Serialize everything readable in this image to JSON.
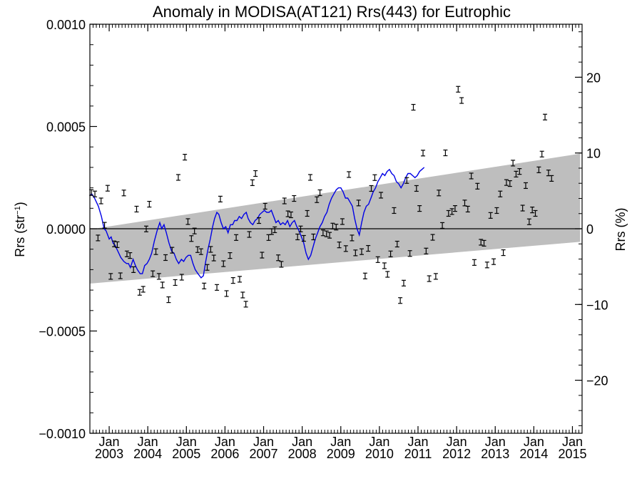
{
  "chart_data": {
    "type": "scatter",
    "title": "Anomaly in MODISA(AT121) Rrs(443) for Eutrophic",
    "ylabel_left": "Rrs (str",
    "ylabel_left_sup": "−1",
    "ylabel_left_tail": ")",
    "ylabel_right": "Rrs (%)",
    "x_range": [
      2002.5,
      2015.25
    ],
    "y_left_range": [
      -0.001,
      0.001
    ],
    "y_right_range": [
      -27,
      27
    ],
    "y_left_ticks": [
      {
        "v": 0.001,
        "label": "0.0010"
      },
      {
        "v": 0.0005,
        "label": "0.0005"
      },
      {
        "v": 0.0,
        "label": "0.0000"
      },
      {
        "v": -0.0005,
        "label": "−0.0005"
      },
      {
        "v": -0.001,
        "label": "−0.0010"
      }
    ],
    "y_right_ticks": [
      {
        "v": 20,
        "label": "20"
      },
      {
        "v": 10,
        "label": "10"
      },
      {
        "v": 0,
        "label": "0"
      },
      {
        "v": -10,
        "label": "−10"
      },
      {
        "v": -20,
        "label": "−20"
      }
    ],
    "x_ticks": [
      {
        "v": 2003.0,
        "month": "Jan",
        "year": "2003"
      },
      {
        "v": 2004.0,
        "month": "Jan",
        "year": "2004"
      },
      {
        "v": 2005.0,
        "month": "Jan",
        "year": "2005"
      },
      {
        "v": 2006.0,
        "month": "Jan",
        "year": "2006"
      },
      {
        "v": 2007.0,
        "month": "Jan",
        "year": "2007"
      },
      {
        "v": 2008.0,
        "month": "Jan",
        "year": "2008"
      },
      {
        "v": 2009.0,
        "month": "Jan",
        "year": "2009"
      },
      {
        "v": 2010.0,
        "month": "Jan",
        "year": "2010"
      },
      {
        "v": 2011.0,
        "month": "Jan",
        "year": "2011"
      },
      {
        "v": 2012.0,
        "month": "Jan",
        "year": "2012"
      },
      {
        "v": 2013.0,
        "month": "Jan",
        "year": "2013"
      },
      {
        "v": 2014.0,
        "month": "Jan",
        "year": "2014"
      },
      {
        "v": 2015.0,
        "month": "Jan",
        "year": "2015"
      }
    ],
    "band": {
      "x": [
        2002.5,
        2015.2
      ],
      "upper": [
        -3e-06,
        0.000367
      ],
      "lower": [
        -0.000268,
        -6.4e-05
      ],
      "color": "#bebebe"
    },
    "zero_line": 0.0,
    "colors": {
      "points": "#000000",
      "running_mean": "#0000e6",
      "band": "#bebebe"
    },
    "points": [
      [
        2002.54,
        0.000177
      ],
      [
        2002.63,
        0.00017
      ],
      [
        2002.71,
        -4.5e-05
      ],
      [
        2002.79,
        0.000136
      ],
      [
        2002.88,
        1.7e-05
      ],
      [
        2002.96,
        0.000198
      ],
      [
        2003.04,
        -0.000233
      ],
      [
        2003.13,
        -7.4e-05
      ],
      [
        2003.21,
        -7.8e-05
      ],
      [
        2003.29,
        -0.00023
      ],
      [
        2003.38,
        0.000175
      ],
      [
        2003.46,
        -0.000123
      ],
      [
        2003.54,
        -0.000131
      ],
      [
        2003.63,
        -0.0002
      ],
      [
        2003.71,
        9.6e-05
      ],
      [
        2003.79,
        -0.000311
      ],
      [
        2003.88,
        -0.000296
      ],
      [
        2003.96,
        -1e-06
      ],
      [
        2004.04,
        0.00012
      ],
      [
        2004.13,
        -0.00022
      ],
      [
        2004.21,
        -0.000112
      ],
      [
        2004.29,
        -0.000233
      ],
      [
        2004.38,
        -0.000275
      ],
      [
        2004.46,
        -0.000141
      ],
      [
        2004.54,
        -0.000347
      ],
      [
        2004.63,
        -0.000105
      ],
      [
        2004.71,
        -0.000263
      ],
      [
        2004.79,
        0.000251
      ],
      [
        2004.88,
        -0.000237
      ],
      [
        2004.96,
        0.00035
      ],
      [
        2005.04,
        3.5e-05
      ],
      [
        2005.13,
        -4.8e-05
      ],
      [
        2005.21,
        -1.1e-05
      ],
      [
        2005.29,
        -0.000102
      ],
      [
        2005.38,
        -0.000112
      ],
      [
        2005.46,
        -0.00028
      ],
      [
        2005.54,
        -0.000189
      ],
      [
        2005.63,
        -0.000101
      ],
      [
        2005.71,
        -0.000143
      ],
      [
        2005.79,
        -0.000287
      ],
      [
        2005.88,
        0.000145
      ],
      [
        2005.96,
        -0.000171
      ],
      [
        2006.04,
        -0.000317
      ],
      [
        2006.13,
        -0.000131
      ],
      [
        2006.21,
        -0.000253
      ],
      [
        2006.29,
        -4.3e-05
      ],
      [
        2006.38,
        -0.000247
      ],
      [
        2006.46,
        -0.000324
      ],
      [
        2006.54,
        -0.000369
      ],
      [
        2006.63,
        -2.8e-05
      ],
      [
        2006.71,
        0.000225
      ],
      [
        2006.79,
        0.00027
      ],
      [
        2006.88,
        4e-05
      ],
      [
        2006.96,
        -0.000129
      ],
      [
        2007.04,
        0.00011
      ],
      [
        2007.13,
        -4.3e-05
      ],
      [
        2007.21,
        -1.4e-05
      ],
      [
        2007.29,
        -5e-06
      ],
      [
        2007.38,
        -0.000142
      ],
      [
        2007.46,
        -0.000174
      ],
      [
        2007.54,
        0.000136
      ],
      [
        2007.63,
        7.3e-05
      ],
      [
        2007.71,
        6.8e-05
      ],
      [
        2007.79,
        0.000148
      ],
      [
        2007.88,
        -4e-05
      ],
      [
        2007.96,
        -1e-06
      ],
      [
        2008.04,
        -4.7e-05
      ],
      [
        2008.13,
        7.5e-05
      ],
      [
        2008.21,
        0.000251
      ],
      [
        2008.29,
        -4e-05
      ],
      [
        2008.38,
        0.000142
      ],
      [
        2008.46,
        0.000176
      ],
      [
        2008.54,
        -2e-05
      ],
      [
        2008.63,
        -2.5e-05
      ],
      [
        2008.71,
        -3.2e-05
      ],
      [
        2008.79,
        1.3e-05
      ],
      [
        2008.88,
        8e-06
      ],
      [
        2008.96,
        -7.9e-05
      ],
      [
        2009.04,
        3.5e-05
      ],
      [
        2009.13,
        -9.7e-05
      ],
      [
        2009.21,
        0.000265
      ],
      [
        2009.29,
        -4.5e-05
      ],
      [
        2009.38,
        -0.000118
      ],
      [
        2009.46,
        0.000126
      ],
      [
        2009.54,
        -0.000112
      ],
      [
        2009.63,
        -0.000231
      ],
      [
        2009.71,
        -9.6e-05
      ],
      [
        2009.79,
        0.000197
      ],
      [
        2009.88,
        0.00025
      ],
      [
        2009.96,
        -0.000151
      ],
      [
        2010.04,
        0.000164
      ],
      [
        2010.13,
        -0.000181
      ],
      [
        2010.21,
        -0.000223
      ],
      [
        2010.29,
        -0.000123
      ],
      [
        2010.38,
        8.9e-05
      ],
      [
        2010.46,
        -7.5e-05
      ],
      [
        2010.54,
        -0.000351
      ],
      [
        2010.63,
        -0.000266
      ],
      [
        2010.71,
        0.000236
      ],
      [
        2010.79,
        -0.000121
      ],
      [
        2010.88,
        0.000594
      ],
      [
        2010.96,
        0.000197
      ],
      [
        2011.04,
        9.9e-05
      ],
      [
        2011.13,
        0.00037
      ],
      [
        2011.21,
        -0.000109
      ],
      [
        2011.29,
        -0.000244
      ],
      [
        2011.38,
        -4.2e-05
      ],
      [
        2011.46,
        -0.000233
      ],
      [
        2011.54,
        0.000175
      ],
      [
        2011.63,
        1.6e-05
      ],
      [
        2011.71,
        0.000371
      ],
      [
        2011.79,
        7.5e-05
      ],
      [
        2011.88,
        8.4e-05
      ],
      [
        2011.96,
        9.9e-05
      ],
      [
        2012.04,
        0.000682
      ],
      [
        2012.13,
        0.000627
      ],
      [
        2012.21,
        0.000126
      ],
      [
        2012.29,
        9.6e-05
      ],
      [
        2012.38,
        0.000258
      ],
      [
        2012.46,
        -0.000165
      ],
      [
        2012.54,
        0.000208
      ],
      [
        2012.63,
        -6.6e-05
      ],
      [
        2012.71,
        -7.1e-05
      ],
      [
        2012.79,
        -0.000177
      ],
      [
        2012.88,
        6.5e-05
      ],
      [
        2012.96,
        -0.000161
      ],
      [
        2013.04,
        8.9e-05
      ],
      [
        2013.13,
        0.00017
      ],
      [
        2013.21,
        -0.000117
      ],
      [
        2013.29,
        0.000226
      ],
      [
        2013.38,
        0.000221
      ],
      [
        2013.46,
        0.000321
      ],
      [
        2013.54,
        0.000267
      ],
      [
        2013.63,
        0.00028
      ],
      [
        2013.71,
        0.000101
      ],
      [
        2013.79,
        0.000211
      ],
      [
        2013.88,
        3.4e-05
      ],
      [
        2013.96,
        9.2e-05
      ],
      [
        2014.04,
        7.5e-05
      ],
      [
        2014.13,
        0.000288
      ],
      [
        2014.21,
        0.000365
      ],
      [
        2014.29,
        0.000546
      ],
      [
        2014.38,
        0.000273
      ],
      [
        2014.46,
        0.000246
      ]
    ],
    "running_mean": [
      [
        2002.5,
        0.000163
      ],
      [
        2002.55,
        0.00017
      ],
      [
        2002.62,
        0.00015
      ],
      [
        2002.72,
        0.00011
      ],
      [
        2002.8,
        6e-05
      ],
      [
        2002.87,
        0.0
      ],
      [
        2002.92,
        -1e-05
      ],
      [
        2003.0,
        -5e-05
      ],
      [
        2003.05,
        -4e-05
      ],
      [
        2003.1,
        -7e-05
      ],
      [
        2003.15,
        -8e-05
      ],
      [
        2003.2,
        -0.0001
      ],
      [
        2003.25,
        -0.00012
      ],
      [
        2003.3,
        -0.00014
      ],
      [
        2003.38,
        -0.00016
      ],
      [
        2003.45,
        -0.00017
      ],
      [
        2003.5,
        -0.00017
      ],
      [
        2003.55,
        -0.00019
      ],
      [
        2003.62,
        -0.00015
      ],
      [
        2003.68,
        -0.00018
      ],
      [
        2003.73,
        -0.0002
      ],
      [
        2003.8,
        -0.00022
      ],
      [
        2003.86,
        -0.00022
      ],
      [
        2003.92,
        -0.00018
      ],
      [
        2003.98,
        -0.00017
      ],
      [
        2004.04,
        -0.00015
      ],
      [
        2004.1,
        -0.00012
      ],
      [
        2004.17,
        -6e-05
      ],
      [
        2004.24,
        -1e-05
      ],
      [
        2004.31,
        3e-05
      ],
      [
        2004.36,
        0.0
      ],
      [
        2004.42,
        2e-05
      ],
      [
        2004.48,
        -2e-05
      ],
      [
        2004.55,
        -7e-05
      ],
      [
        2004.62,
        -0.00011
      ],
      [
        2004.68,
        -0.00012
      ],
      [
        2004.74,
        -0.00015
      ],
      [
        2004.8,
        -0.00017
      ],
      [
        2004.87,
        -0.00015
      ],
      [
        2004.93,
        -0.00016
      ],
      [
        2004.99,
        -0.00014
      ],
      [
        2005.05,
        -0.00013
      ],
      [
        2005.11,
        -0.00013
      ],
      [
        2005.17,
        -0.00017
      ],
      [
        2005.23,
        -0.0002
      ],
      [
        2005.3,
        -0.00022
      ],
      [
        2005.38,
        -0.00024
      ],
      [
        2005.44,
        -0.00023
      ],
      [
        2005.5,
        -0.00016
      ],
      [
        2005.56,
        -0.0001
      ],
      [
        2005.62,
        -5e-05
      ],
      [
        2005.68,
        1e-05
      ],
      [
        2005.73,
        5e-05
      ],
      [
        2005.79,
        8e-05
      ],
      [
        2005.84,
        7e-05
      ],
      [
        2005.9,
        3e-05
      ],
      [
        2005.96,
        0.0
      ],
      [
        2006.02,
        1e-05
      ],
      [
        2006.08,
        -2e-05
      ],
      [
        2006.14,
        2e-05
      ],
      [
        2006.2,
        2e-05
      ],
      [
        2006.25,
        4e-05
      ],
      [
        2006.31,
        4e-05
      ],
      [
        2006.37,
        6e-05
      ],
      [
        2006.43,
        5e-05
      ],
      [
        2006.49,
        7e-05
      ],
      [
        2006.55,
        8e-05
      ],
      [
        2006.6,
        5e-05
      ],
      [
        2006.66,
        3e-05
      ],
      [
        2006.72,
        2e-05
      ],
      [
        2006.78,
        4e-05
      ],
      [
        2006.84,
        5e-05
      ],
      [
        2006.9,
        7e-05
      ],
      [
        2006.96,
        8e-05
      ],
      [
        2007.02,
        9e-05
      ],
      [
        2007.08,
        8e-05
      ],
      [
        2007.14,
        8e-05
      ],
      [
        2007.2,
        9e-05
      ],
      [
        2007.26,
        6e-05
      ],
      [
        2007.32,
        3e-05
      ],
      [
        2007.38,
        4e-05
      ],
      [
        2007.44,
        2e-05
      ],
      [
        2007.5,
        3e-05
      ],
      [
        2007.56,
        2e-05
      ],
      [
        2007.62,
        4e-05
      ],
      [
        2007.68,
        1e-05
      ],
      [
        2007.74,
        3e-05
      ],
      [
        2007.8,
        4e-05
      ],
      [
        2007.86,
        1e-05
      ],
      [
        2007.92,
        -1e-05
      ],
      [
        2007.98,
        -4e-05
      ],
      [
        2008.04,
        -7e-05
      ],
      [
        2008.1,
        -0.00012
      ],
      [
        2008.16,
        -0.00015
      ],
      [
        2008.22,
        -0.00013
      ],
      [
        2008.28,
        -9e-05
      ],
      [
        2008.34,
        -5e-05
      ],
      [
        2008.4,
        -2e-05
      ],
      [
        2008.46,
        1e-05
      ],
      [
        2008.52,
        3e-05
      ],
      [
        2008.58,
        6e-05
      ],
      [
        2008.64,
        8e-05
      ],
      [
        2008.7,
        0.00012
      ],
      [
        2008.76,
        0.00015
      ],
      [
        2008.82,
        0.00017
      ],
      [
        2008.88,
        0.00019
      ],
      [
        2008.94,
        0.0002
      ],
      [
        2009.0,
        0.0002
      ],
      [
        2009.06,
        0.00018
      ],
      [
        2009.12,
        0.00015
      ],
      [
        2009.18,
        0.00015
      ],
      [
        2009.24,
        0.00013
      ],
      [
        2009.3,
        0.00011
      ],
      [
        2009.36,
        5e-05
      ],
      [
        2009.42,
        0.0
      ],
      [
        2009.48,
        -3e-05
      ],
      [
        2009.54,
        3e-05
      ],
      [
        2009.6,
        8e-05
      ],
      [
        2009.66,
        0.00011
      ],
      [
        2009.72,
        0.00012
      ],
      [
        2009.78,
        0.00015
      ],
      [
        2009.84,
        0.00018
      ],
      [
        2009.9,
        0.0002
      ],
      [
        2009.96,
        0.00023
      ],
      [
        2010.02,
        0.00025
      ],
      [
        2010.08,
        0.00027
      ],
      [
        2010.14,
        0.00026
      ],
      [
        2010.2,
        0.00028
      ],
      [
        2010.26,
        0.00029
      ],
      [
        2010.32,
        0.00027
      ],
      [
        2010.38,
        0.00026
      ],
      [
        2010.44,
        0.00023
      ],
      [
        2010.5,
        0.00022
      ],
      [
        2010.56,
        0.0002
      ],
      [
        2010.62,
        0.00022
      ],
      [
        2010.68,
        0.00025
      ],
      [
        2010.74,
        0.00027
      ],
      [
        2010.8,
        0.00027
      ],
      [
        2010.86,
        0.00026
      ],
      [
        2010.92,
        0.00025
      ],
      [
        2010.98,
        0.00026
      ],
      [
        2011.04,
        0.00028
      ],
      [
        2011.1,
        0.00029
      ],
      [
        2011.16,
        0.0003
      ]
    ]
  }
}
